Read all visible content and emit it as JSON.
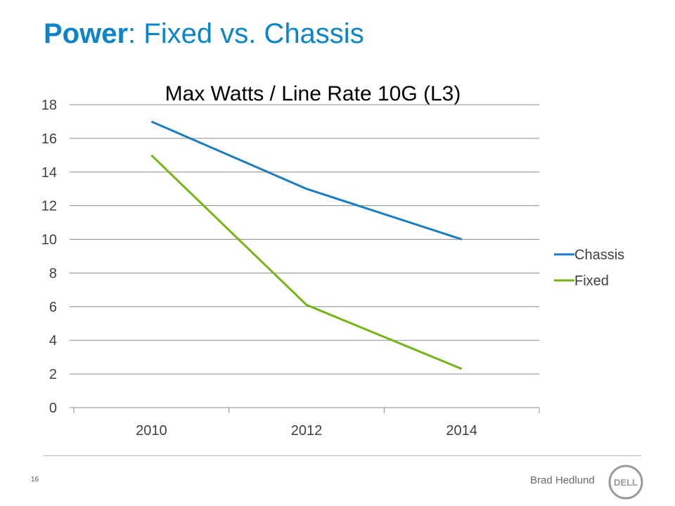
{
  "slide": {
    "title_bold": "Power",
    "title_rest": ": Fixed vs. Chassis",
    "page_number": "16",
    "author": "Brad Hedlund",
    "logo_text": "DELL"
  },
  "colors": {
    "title": "#0b85c8",
    "chassis": "#1a7dc1",
    "fixed": "#74b516",
    "grid": "#8c8c8c"
  },
  "chart_data": {
    "type": "line",
    "title": "Max Watts / Line Rate 10G (L3)",
    "categories": [
      "2010",
      "2012",
      "2014"
    ],
    "series": [
      {
        "name": "Chassis",
        "values": [
          17,
          13,
          10
        ],
        "color": "#1a7dc1"
      },
      {
        "name": "Fixed",
        "values": [
          15,
          6.1,
          2.3
        ],
        "color": "#74b516"
      }
    ],
    "ylim": [
      0,
      18
    ],
    "yticks": [
      0,
      2,
      4,
      6,
      8,
      10,
      12,
      14,
      16,
      18
    ],
    "grid": true,
    "legend": "right"
  }
}
